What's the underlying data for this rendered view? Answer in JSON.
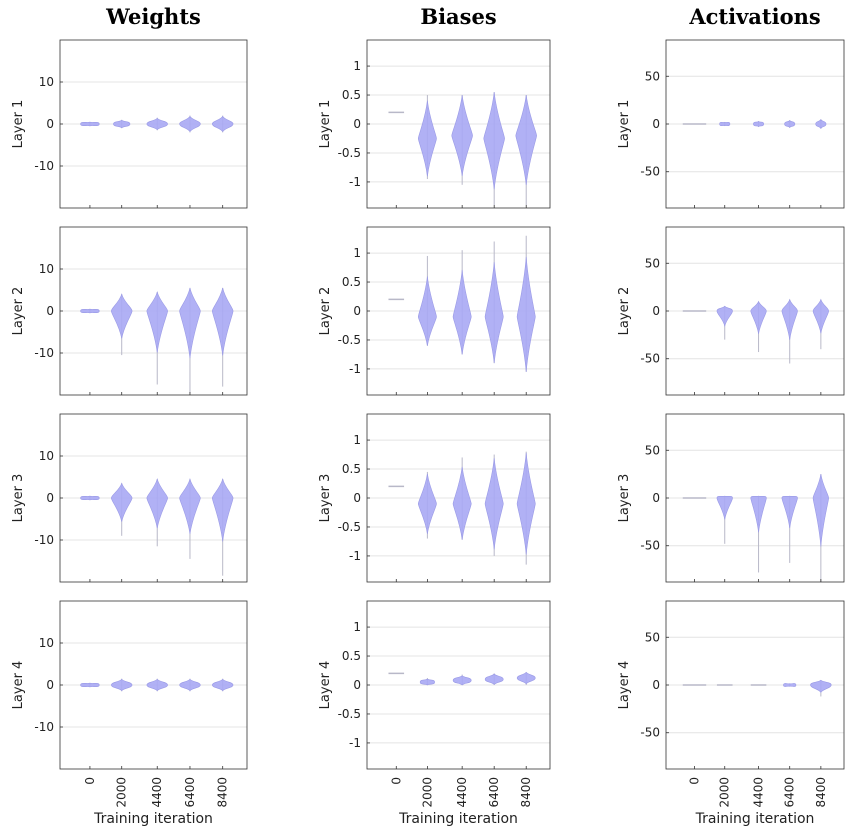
{
  "chart_data": {
    "type": "violin",
    "xlabel": "Training iteration",
    "x": [
      0,
      2000,
      4400,
      6400,
      8400
    ],
    "x_tick_labels": [
      "0",
      "2000",
      "4400",
      "6400",
      "8400"
    ],
    "row_labels": [
      "Layer 1",
      "Layer 2",
      "Layer 3",
      "Layer 4"
    ],
    "columns": [
      {
        "title": "Weights",
        "ylim": [
          -20,
          20
        ],
        "yticks": [
          10,
          0,
          -10
        ],
        "ytick_labels": [
          "10",
          "0",
          "-10"
        ],
        "layers": [
          {
            "label": "Layer 1",
            "distributions": [
              {
                "min": -0.5,
                "max": 0.5,
                "median": 0,
                "width": 0.9
              },
              {
                "min": -1,
                "max": 1,
                "median": 0,
                "width": 0.8
              },
              {
                "min": -1.5,
                "max": 1.5,
                "median": 0,
                "width": 0.8
              },
              {
                "min": -2,
                "max": 2,
                "median": 0,
                "width": 0.8
              },
              {
                "min": -2,
                "max": 2,
                "median": 0,
                "width": 0.8
              }
            ]
          },
          {
            "label": "Layer 2",
            "distributions": [
              {
                "min": -0.5,
                "max": 0.5,
                "median": 0,
                "width": 0.9
              },
              {
                "min": -10.5,
                "max": 4,
                "median": 0,
                "width": 0.8
              },
              {
                "min": -17.5,
                "max": 4.5,
                "median": 0,
                "width": 0.8
              },
              {
                "min": -19.5,
                "max": 5.5,
                "median": 0,
                "width": 0.8
              },
              {
                "min": -18,
                "max": 5.5,
                "median": 0,
                "width": 0.8
              }
            ]
          },
          {
            "label": "Layer 3",
            "distributions": [
              {
                "min": -0.5,
                "max": 0.5,
                "median": 0,
                "width": 0.9
              },
              {
                "min": -9,
                "max": 3.5,
                "median": 0,
                "width": 0.8
              },
              {
                "min": -11.5,
                "max": 4.5,
                "median": 0,
                "width": 0.8
              },
              {
                "min": -14.5,
                "max": 4.5,
                "median": 0,
                "width": 0.8
              },
              {
                "min": -18.5,
                "max": 4.5,
                "median": 0,
                "width": 0.8
              }
            ]
          },
          {
            "label": "Layer 4",
            "distributions": [
              {
                "min": -0.5,
                "max": 0.5,
                "median": 0,
                "width": 0.9
              },
              {
                "min": -1.5,
                "max": 1.5,
                "median": 0,
                "width": 0.8
              },
              {
                "min": -1.5,
                "max": 1.5,
                "median": 0,
                "width": 0.8
              },
              {
                "min": -1.5,
                "max": 1.5,
                "median": 0,
                "width": 0.8
              },
              {
                "min": -1.5,
                "max": 1.5,
                "median": 0,
                "width": 0.8
              }
            ]
          }
        ]
      },
      {
        "title": "Biases",
        "ylim": [
          -1.45,
          1.45
        ],
        "yticks": [
          1,
          0.5,
          0,
          -0.5,
          -1
        ],
        "ytick_labels": [
          "1",
          "0.5",
          "0",
          "-0.5",
          "-1"
        ],
        "layers": [
          {
            "label": "Layer 1",
            "distributions": [
              {
                "min": 0.2,
                "max": 0.2,
                "median": 0.2,
                "width": 0.6
              },
              {
                "min": -0.95,
                "max": 0.5,
                "median": -0.25,
                "width": 0.7
              },
              {
                "min": -1.05,
                "max": 0.5,
                "median": -0.2,
                "width": 0.8
              },
              {
                "min": -1.4,
                "max": 0.55,
                "median": -0.25,
                "width": 0.8
              },
              {
                "min": -1.4,
                "max": 0.5,
                "median": -0.2,
                "width": 0.8
              }
            ]
          },
          {
            "label": "Layer 2",
            "distributions": [
              {
                "min": 0.2,
                "max": 0.2,
                "median": 0.2,
                "width": 0.6
              },
              {
                "min": -0.6,
                "max": 0.95,
                "median": -0.1,
                "width": 0.7
              },
              {
                "min": -0.75,
                "max": 1.05,
                "median": -0.1,
                "width": 0.7
              },
              {
                "min": -0.9,
                "max": 1.2,
                "median": -0.1,
                "width": 0.7
              },
              {
                "min": -1.05,
                "max": 1.3,
                "median": -0.1,
                "width": 0.7
              }
            ]
          },
          {
            "label": "Layer 3",
            "distributions": [
              {
                "min": 0.2,
                "max": 0.2,
                "median": 0.2,
                "width": 0.6
              },
              {
                "min": -0.7,
                "max": 0.45,
                "median": -0.1,
                "width": 0.7
              },
              {
                "min": -0.72,
                "max": 0.7,
                "median": -0.1,
                "width": 0.7
              },
              {
                "min": -1.0,
                "max": 0.75,
                "median": -0.1,
                "width": 0.7
              },
              {
                "min": -1.15,
                "max": 0.8,
                "median": -0.1,
                "width": 0.7
              }
            ]
          },
          {
            "label": "Layer 4",
            "distributions": [
              {
                "min": 0.2,
                "max": 0.2,
                "median": 0.2,
                "width": 0.6
              },
              {
                "min": 0,
                "max": 0.12,
                "median": 0.05,
                "width": 0.7
              },
              {
                "min": 0,
                "max": 0.18,
                "median": 0.08,
                "width": 0.7
              },
              {
                "min": 0,
                "max": 0.2,
                "median": 0.1,
                "width": 0.7
              },
              {
                "min": 0,
                "max": 0.22,
                "median": 0.12,
                "width": 0.7
              }
            ]
          }
        ]
      },
      {
        "title": "Activations",
        "ylim": [
          -88,
          88
        ],
        "yticks": [
          50,
          0,
          -50
        ],
        "ytick_labels": [
          "50",
          "0",
          "-50"
        ],
        "layers": [
          {
            "label": "Layer 1",
            "distributions": [
              {
                "min": -0.5,
                "max": 0.5,
                "median": 0,
                "width": 0.9
              },
              {
                "min": -2,
                "max": 2,
                "median": 0,
                "width": 0.5
              },
              {
                "min": -3,
                "max": 3,
                "median": 0,
                "width": 0.5
              },
              {
                "min": -4,
                "max": 4,
                "median": 0,
                "width": 0.5
              },
              {
                "min": -5,
                "max": 5,
                "median": 0,
                "width": 0.5
              }
            ]
          },
          {
            "label": "Layer 2",
            "distributions": [
              {
                "min": -0.5,
                "max": 0.5,
                "median": 0,
                "width": 0.9
              },
              {
                "min": -30,
                "max": 5,
                "median": 0,
                "width": 0.6
              },
              {
                "min": -43,
                "max": 10,
                "median": 0,
                "width": 0.6
              },
              {
                "min": -55,
                "max": 12,
                "median": 0,
                "width": 0.6
              },
              {
                "min": -40,
                "max": 12,
                "median": 0,
                "width": 0.6
              }
            ]
          },
          {
            "label": "Layer 3",
            "distributions": [
              {
                "min": -0.5,
                "max": 0.5,
                "median": 0,
                "width": 0.9
              },
              {
                "min": -48,
                "max": 2,
                "median": 0,
                "width": 0.6
              },
              {
                "min": -78,
                "max": 2,
                "median": 0,
                "width": 0.6
              },
              {
                "min": -68,
                "max": 2,
                "median": 0,
                "width": 0.6
              },
              {
                "min": -88,
                "max": 25,
                "median": 0,
                "width": 0.6
              }
            ]
          },
          {
            "label": "Layer 4",
            "distributions": [
              {
                "min": -0.5,
                "max": 0.5,
                "median": 0,
                "width": 0.9
              },
              {
                "min": -1,
                "max": 1,
                "median": 0,
                "width": 0.6
              },
              {
                "min": -1,
                "max": 1,
                "median": 0,
                "width": 0.6
              },
              {
                "min": -1.5,
                "max": 1.5,
                "median": 0,
                "width": 0.6
              },
              {
                "min": -12,
                "max": 5,
                "median": 0,
                "width": 0.8
              }
            ]
          }
        ]
      }
    ],
    "fill_color": "#a8a8f4",
    "line_color": "#b8b8c8",
    "grid": true
  }
}
